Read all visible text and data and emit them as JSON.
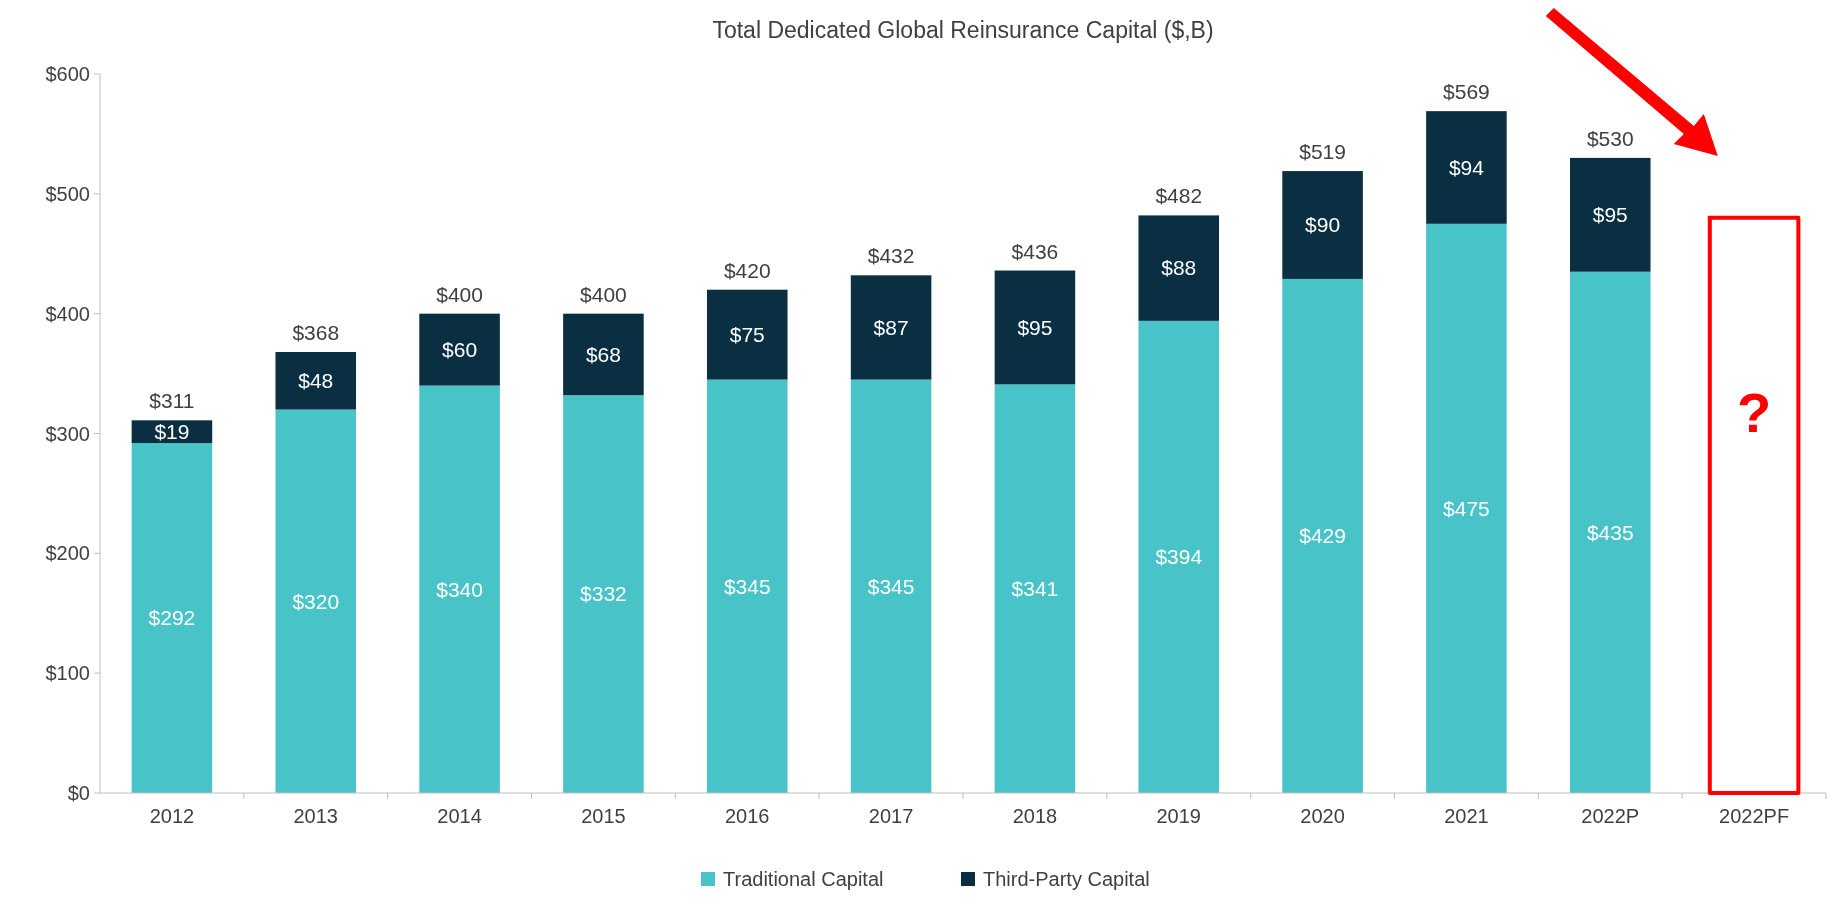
{
  "chart_data": {
    "type": "bar",
    "title": "Total Dedicated Global Reinsurance Capital ($,B)",
    "categories": [
      "2012",
      "2013",
      "2014",
      "2015",
      "2016",
      "2017",
      "2018",
      "2019",
      "2020",
      "2021",
      "2022P",
      "2022PF"
    ],
    "stacked": true,
    "series": [
      {
        "name": "Traditional Capital",
        "color": "#48c4c8",
        "values": [
          292,
          320,
          340,
          332,
          345,
          345,
          341,
          394,
          429,
          475,
          435,
          null
        ],
        "value_labels": [
          "$292",
          "$320",
          "$340",
          "$332",
          "$345",
          "$345",
          "$341",
          "$394",
          "$429",
          "$475",
          "$435",
          null
        ]
      },
      {
        "name": "Third-Party Capital",
        "color": "#0a2e42",
        "values": [
          19,
          48,
          60,
          68,
          75,
          87,
          95,
          88,
          90,
          94,
          95,
          null
        ],
        "value_labels": [
          "$19",
          "$48",
          "$60",
          "$68",
          "$75",
          "$87",
          "$95",
          "$88",
          "$90",
          "$94",
          "$95",
          null
        ]
      }
    ],
    "totals": [
      "$311",
      "$368",
      "$400",
      "$400",
      "$420",
      "$432",
      "$436",
      "$482",
      "$519",
      "$569",
      "$530",
      null
    ],
    "ylim": [
      0,
      600
    ],
    "yticks": [
      {
        "value": 0,
        "label": "$0"
      },
      {
        "value": 100,
        "label": "$100"
      },
      {
        "value": 200,
        "label": "$200"
      },
      {
        "value": 300,
        "label": "$300"
      },
      {
        "value": 400,
        "label": "$400"
      },
      {
        "value": 500,
        "label": "$500"
      },
      {
        "value": 600,
        "label": "$600"
      }
    ],
    "grid": false,
    "legend": "bottom",
    "annotations": [
      "?"
    ]
  }
}
